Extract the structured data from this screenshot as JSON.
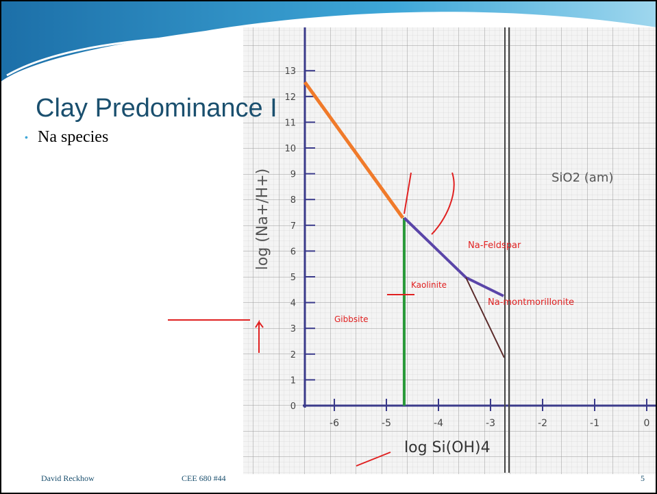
{
  "slide": {
    "title": "Clay Predominance I",
    "bullets": [
      "Na species"
    ],
    "footer": {
      "author": "David Reckhow",
      "course": "CEE 680  #44",
      "page": "5"
    }
  },
  "figure": {
    "y_axis_label": "log (Na+/H+)",
    "x_axis_label": "log Si(OH)4",
    "yticks": [
      "0",
      "1",
      "2",
      "3",
      "4",
      "5",
      "6",
      "7",
      "8",
      "9",
      "10",
      "11",
      "12",
      "13"
    ],
    "xticks": [
      "-6",
      "-5",
      "-4",
      "-3",
      "-2",
      "-1",
      "0"
    ],
    "regions": [
      "Gibbsite",
      "Kaolinite",
      "Na-Feldspar",
      "Na-montmorillonite",
      "SiO2 (am)"
    ]
  }
}
